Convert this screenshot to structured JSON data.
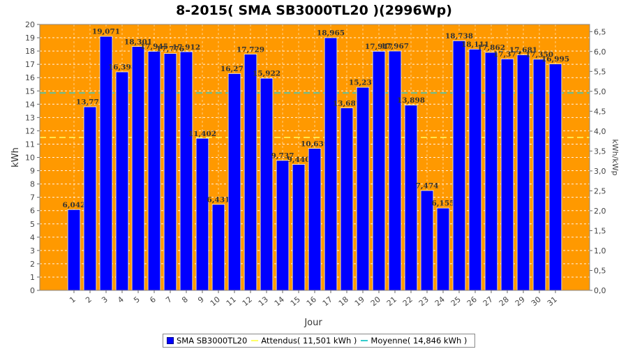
{
  "chart_data": {
    "type": "bar",
    "title": "8-2015( SMA SB3000TL20 )(2996Wp)",
    "xlabel": "Jour",
    "ylabel": "kWh",
    "y2label": "kWh/kWp",
    "ylim": [
      0,
      20
    ],
    "y2lim": [
      0,
      6.68
    ],
    "yticks": [
      "0",
      "1",
      "2",
      "3",
      "4",
      "5",
      "6",
      "7",
      "8",
      "9",
      "10",
      "11",
      "12",
      "13",
      "14",
      "15",
      "16",
      "17",
      "18",
      "19",
      "20"
    ],
    "y2ticks": [
      "0,0",
      "0,5",
      "1,0",
      "1,5",
      "2,0",
      "2,5",
      "3,0",
      "3,5",
      "4,0",
      "4,5",
      "5,0",
      "5,5",
      "6,0",
      "6,5"
    ],
    "categories": [
      "1",
      "2",
      "3",
      "4",
      "5",
      "6",
      "7",
      "8",
      "9",
      "10",
      "11",
      "12",
      "13",
      "14",
      "15",
      "16",
      "17",
      "18",
      "19",
      "20",
      "21",
      "22",
      "23",
      "24",
      "25",
      "26",
      "27",
      "28",
      "29",
      "30",
      "31"
    ],
    "series": [
      {
        "name": "SMA SB3000TL20",
        "values": [
          6.042,
          13.771,
          19.071,
          16.398,
          18.301,
          17.945,
          17.776,
          17.912,
          11.402,
          6.431,
          16.271,
          17.729,
          15.922,
          9.737,
          9.44,
          10.639,
          18.965,
          13.687,
          15.237,
          17.947,
          17.967,
          13.898,
          7.474,
          6.155,
          18.738,
          18.111,
          17.862,
          17.373,
          17.681,
          17.35,
          16.995
        ],
        "labels": [
          "6,042",
          "13,771",
          "19,071",
          "16,398",
          "18,301",
          "17,945",
          "17,776",
          "17,912",
          "11,402",
          "6,431",
          "16,271",
          "17,729",
          "15,922",
          "9,737",
          "9,440",
          "10,639",
          "18,965",
          "13,687",
          "15,237",
          "17,947",
          "17,967",
          "13,898",
          "7,474",
          "6,155",
          "18,738",
          "18,111",
          "17,862",
          "17,373",
          "17,681",
          "17,350",
          "16,995"
        ],
        "color": "#0000ff"
      }
    ],
    "expected": {
      "label": "Attendus( 11,501 kWh )",
      "value": 11.501,
      "color": "#ffff66"
    },
    "average": {
      "label": "Moyenne( 14,846 kWh )",
      "value": 14.846,
      "color": "#33cccc"
    },
    "plot_bg": "#ff9900",
    "grid": true,
    "legend_position": "bottom"
  }
}
